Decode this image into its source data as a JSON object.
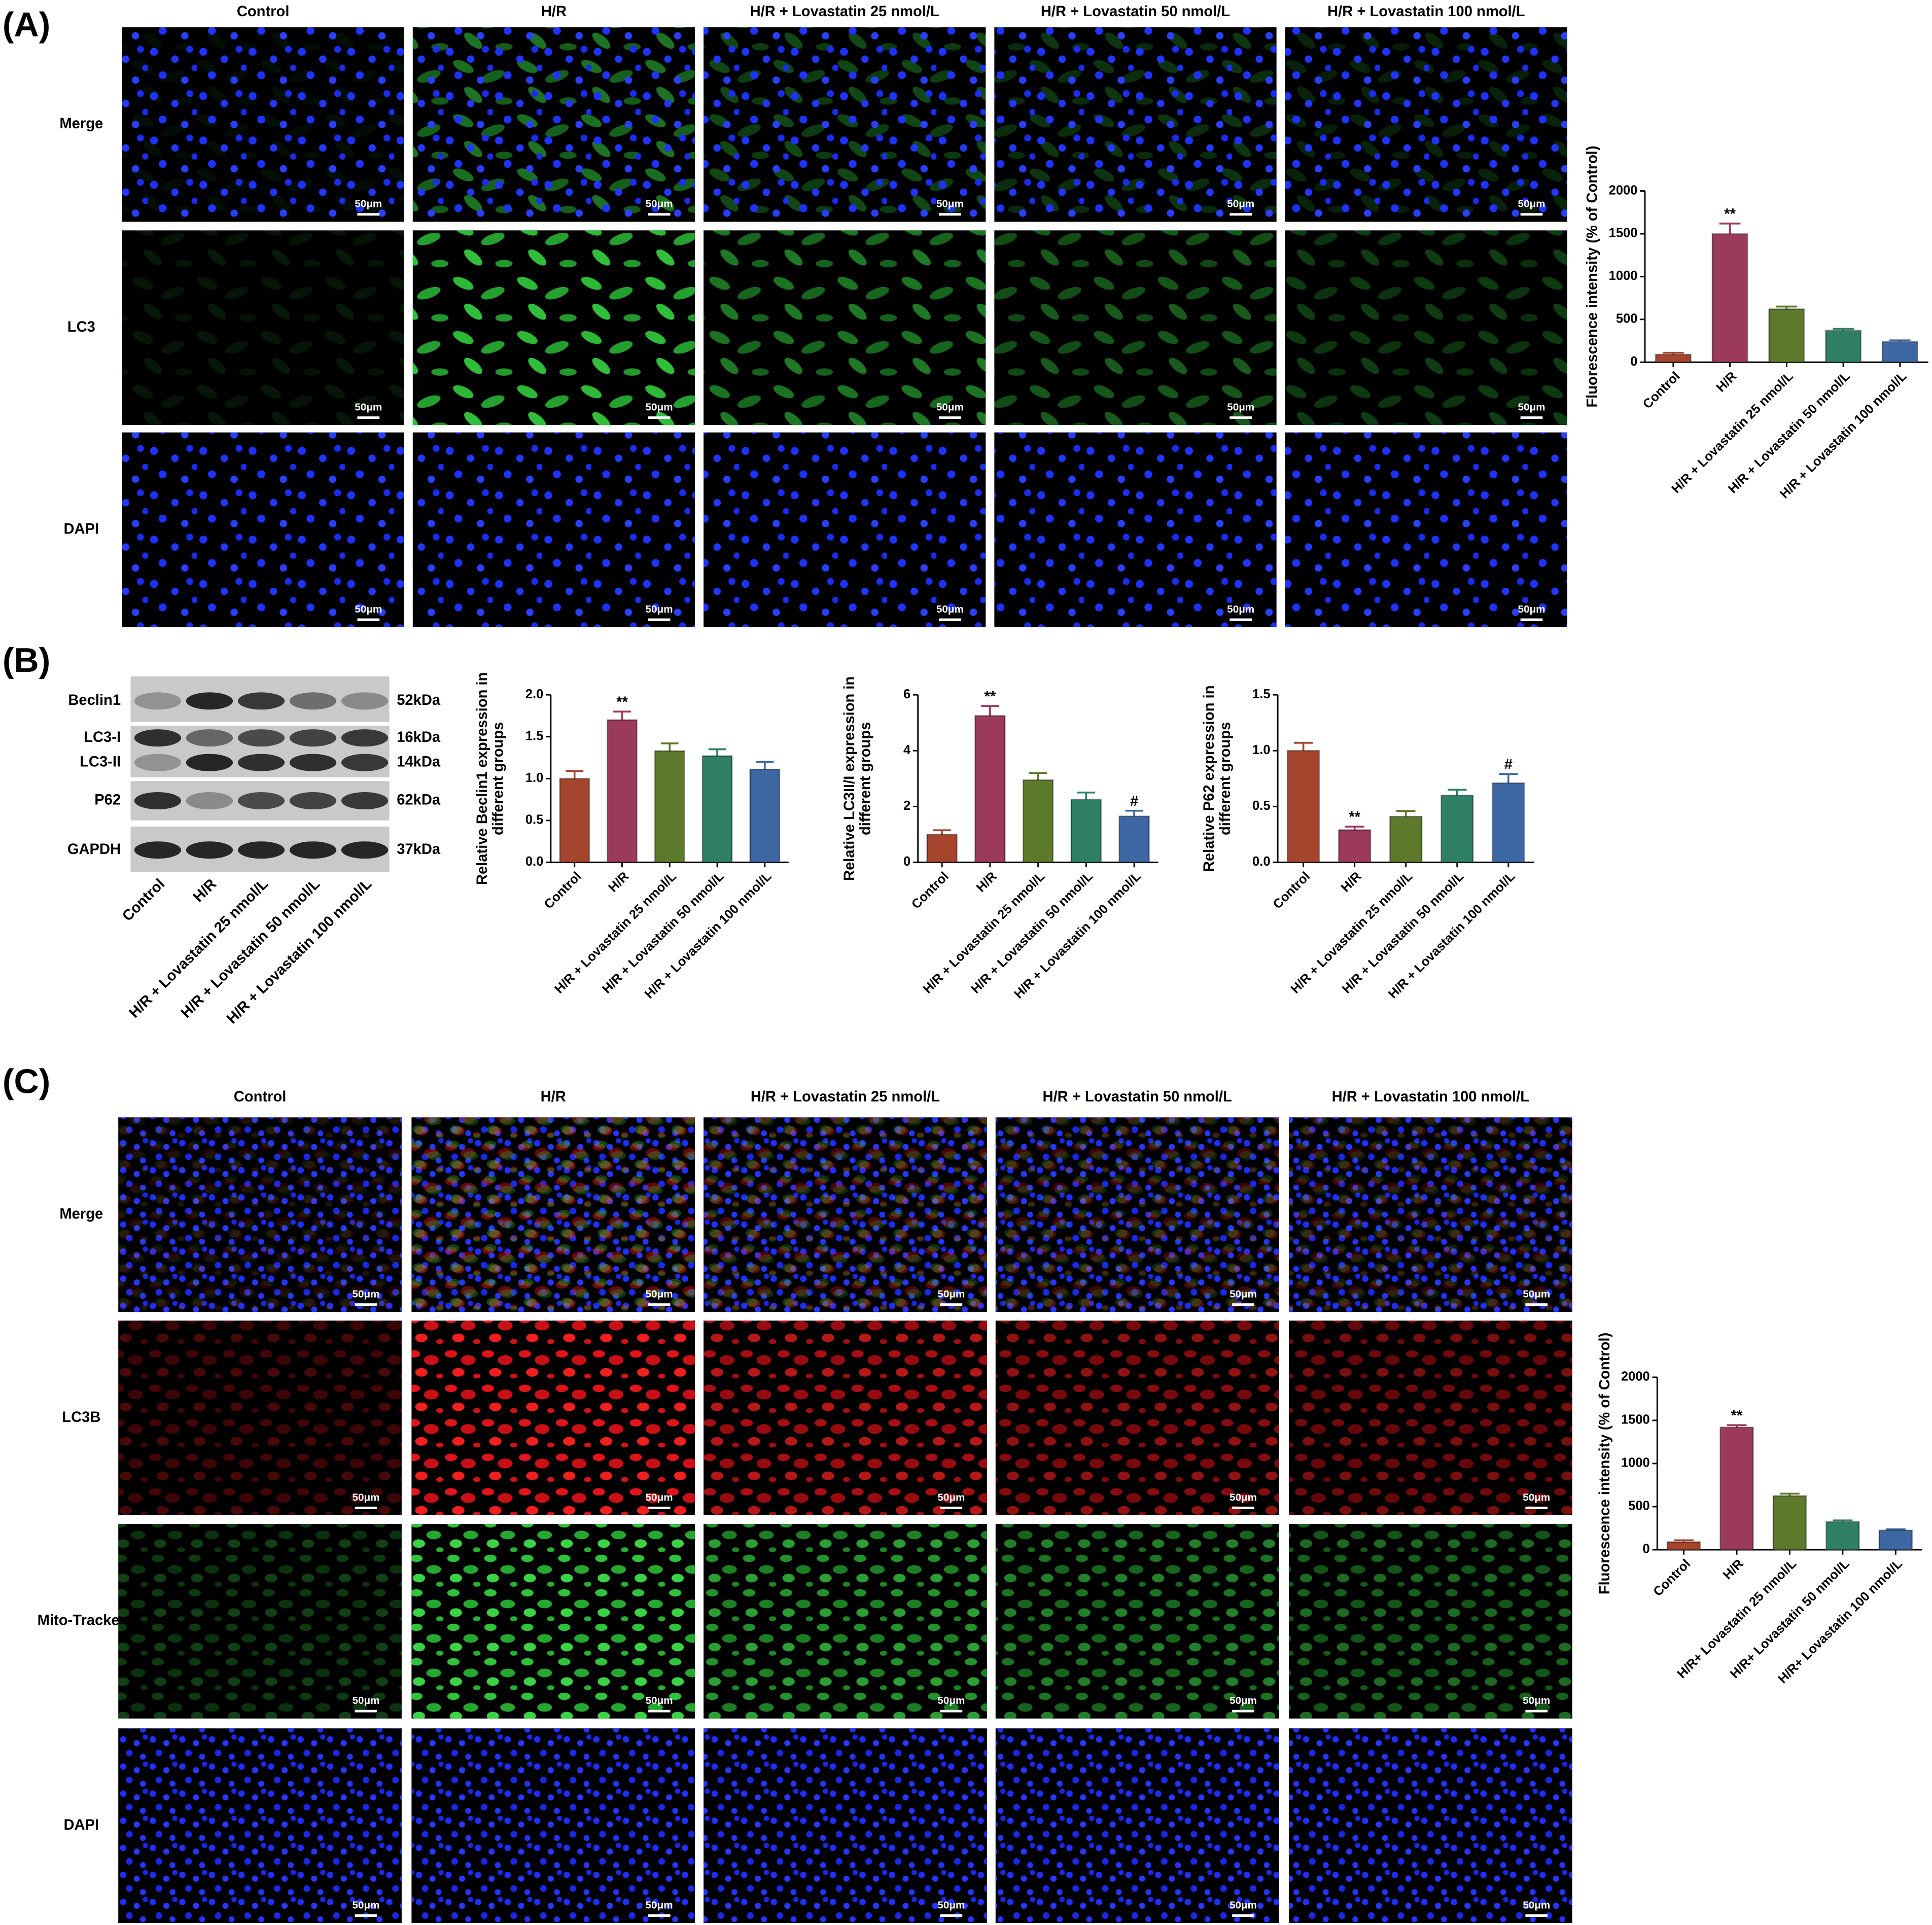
{
  "panel_a": {
    "label": "(A)",
    "columns": [
      "Control",
      "H/R",
      "H/R + Lovastatin 25 nmol/L",
      "H/R + Lovastatin 50 nmol/L",
      "H/R + Lovastatin 100 nmol/L"
    ],
    "rows": [
      "Merge",
      "LC3",
      "DAPI"
    ],
    "scale_bar": "50μm"
  },
  "panel_b": {
    "label": "(B)",
    "blot_rows": [
      "Beclin1",
      "LC3-I",
      "LC3-II",
      "P62",
      "GAPDH"
    ],
    "kda": [
      "52kDa",
      "16kDa",
      "14kDa",
      "62kDa",
      "37kDa"
    ],
    "lanes": [
      "Control",
      "H/R",
      "H/R + Lovastatin 25 nmol/L",
      "H/R + Lovastatin 50 nmol/L",
      "H/R + Lovastatin 100 nmol/L"
    ]
  },
  "panel_c": {
    "label": "(C)",
    "columns": [
      "Control",
      "H/R",
      "H/R + Lovastatin 25 nmol/L",
      "H/R + Lovastatin 50 nmol/L",
      "H/R + Lovastatin 100 nmol/L"
    ],
    "rows": [
      "Merge",
      "LC3B",
      "Mito-Tracker",
      "DAPI"
    ],
    "scale_bar": "50μm"
  },
  "chart_data": [
    {
      "type": "bar",
      "ylabel": [
        "Fluorescence intensity (% of Control)"
      ],
      "categories": [
        "Control",
        "H/R",
        "H/R + Lovastatin 25 nmol/L",
        "H/R + Lovastatin 50 nmol/L",
        "H/R + Lovastatin 100 nmol/L"
      ],
      "values": [
        90,
        1500,
        620,
        370,
        240
      ],
      "errors": [
        20,
        120,
        30,
        20,
        15
      ],
      "colors": [
        "#a5452e",
        "#9c3a5e",
        "#5d7a2c",
        "#2e7f66",
        "#3d67a3"
      ],
      "ylim": [
        0,
        2000
      ],
      "yticks": [
        0,
        500,
        1000,
        1500,
        2000
      ],
      "annotations": [
        {
          "index": 1,
          "text": "**"
        }
      ]
    },
    {
      "type": "bar",
      "ylabel": [
        "Relative Beclin1 expression in",
        "different groups"
      ],
      "categories": [
        "Control",
        "H/R",
        "H/R + Lovastatin 25 nmol/L",
        "H/R + Lovastatin 50 nmol/L",
        "H/R + Lovastatin 100 nmol/L"
      ],
      "values": [
        1.0,
        1.7,
        1.33,
        1.27,
        1.11
      ],
      "errors": [
        0.09,
        0.1,
        0.09,
        0.08,
        0.09
      ],
      "colors": [
        "#a5452e",
        "#9c3a5e",
        "#5d7a2c",
        "#2e7f66",
        "#3d67a3"
      ],
      "ylim": [
        0,
        2.0
      ],
      "yticks": [
        {
          "value": 0,
          "label": "0.0"
        },
        {
          "value": 0.5,
          "label": "0.5"
        },
        {
          "value": 1,
          "label": "1.0"
        },
        {
          "value": 1.5,
          "label": "1.5"
        },
        {
          "value": 2,
          "label": "2.0"
        }
      ],
      "annotations": [
        {
          "index": 1,
          "text": "**"
        }
      ]
    },
    {
      "type": "bar",
      "ylabel": [
        "Relative  LC3II/I expression in",
        "different groups"
      ],
      "categories": [
        "Control",
        "H/R",
        "H/R + Lovastatin 25 nmol/L",
        "H/R + Lovastatin 50 nmol/L",
        "H/R + Lovastatin 100 nmol/L"
      ],
      "values": [
        1.0,
        5.25,
        2.95,
        2.25,
        1.65
      ],
      "errors": [
        0.15,
        0.35,
        0.25,
        0.25,
        0.2
      ],
      "colors": [
        "#a5452e",
        "#9c3a5e",
        "#5d7a2c",
        "#2e7f66",
        "#3d67a3"
      ],
      "ylim": [
        0,
        6
      ],
      "yticks": [
        0,
        2,
        4,
        6
      ],
      "annotations": [
        {
          "index": 1,
          "text": "**"
        },
        {
          "index": 4,
          "text": "#"
        }
      ]
    },
    {
      "type": "bar",
      "ylabel": [
        "Relative P62 expression in",
        "different groups"
      ],
      "categories": [
        "Control",
        "H/R",
        "H/R + Lovastatin 25 nmol/L",
        "H/R + Lovastatin 50 nmol/L",
        "H/R + Lovastatin 100 nmol/L"
      ],
      "values": [
        1.0,
        0.29,
        0.41,
        0.6,
        0.71
      ],
      "errors": [
        0.07,
        0.03,
        0.05,
        0.05,
        0.08
      ],
      "colors": [
        "#a5452e",
        "#9c3a5e",
        "#5d7a2c",
        "#2e7f66",
        "#3d67a3"
      ],
      "ylim": [
        0,
        1.5
      ],
      "yticks": [
        {
          "value": 0,
          "label": "0.0"
        },
        {
          "value": 0.5,
          "label": "0.5"
        },
        {
          "value": 1,
          "label": "1.0"
        },
        {
          "value": 1.5,
          "label": "1.5"
        }
      ],
      "annotations": [
        {
          "index": 1,
          "text": "**"
        },
        {
          "index": 4,
          "text": "#"
        }
      ]
    },
    {
      "type": "bar",
      "ylabel": [
        "Fluorescence intensity (% of Control)"
      ],
      "categories": [
        "Control",
        "H/R",
        "H/R+ Lovastatin 25 nmol/L",
        "H/R+ Lovastatin 50 nmol/L",
        "H/R+ Lovastatin 100 nmol/L"
      ],
      "values": [
        90,
        1420,
        625,
        325,
        225
      ],
      "errors": [
        20,
        25,
        25,
        15,
        12
      ],
      "colors": [
        "#a5452e",
        "#9c3a5e",
        "#5d7a2c",
        "#2e7f66",
        "#3d67a3"
      ],
      "ylim": [
        0,
        2000
      ],
      "yticks": [
        0,
        500,
        1000,
        1500,
        2000
      ],
      "annotations": [
        {
          "index": 1,
          "text": "**"
        }
      ]
    }
  ]
}
